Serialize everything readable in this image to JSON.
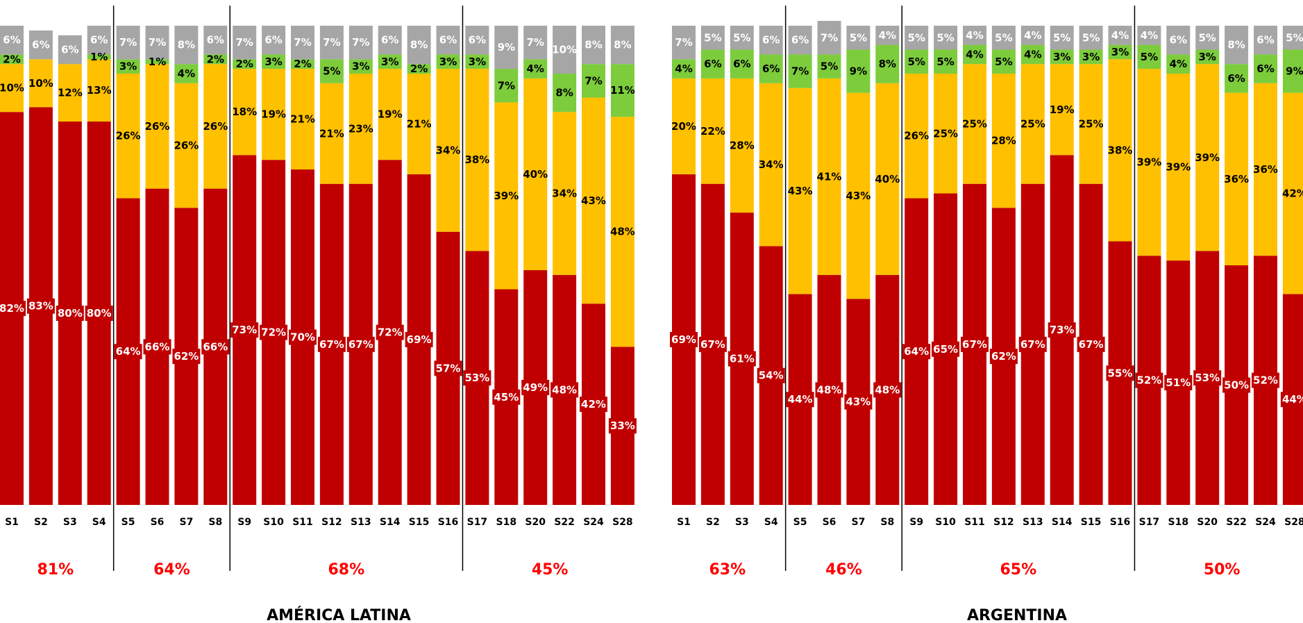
{
  "colors": {
    "red": "#c00000",
    "yellow": "#ffc000",
    "green": "#7ccc3c",
    "gray": "#a6a6a6",
    "avg_text": "#ff0000",
    "divider": "#000000"
  },
  "chart_data": [
    {
      "type": "bar",
      "stacked": true,
      "title": "AMÉRICA LATINA",
      "categories": [
        "S1",
        "S2",
        "S3",
        "S4",
        "S5",
        "S6",
        "S7",
        "S8",
        "S9",
        "S10",
        "S11",
        "S12",
        "S13",
        "S14",
        "S15",
        "S16",
        "S17",
        "S18",
        "S20",
        "S22",
        "S24",
        "S28"
      ],
      "series": [
        {
          "color_key": "red",
          "values": [
            82,
            83,
            80,
            80,
            64,
            66,
            62,
            66,
            73,
            72,
            70,
            67,
            67,
            72,
            69,
            57,
            53,
            45,
            49,
            48,
            42,
            33
          ]
        },
        {
          "color_key": "yellow",
          "values": [
            10,
            10,
            12,
            13,
            26,
            26,
            26,
            26,
            18,
            19,
            21,
            21,
            23,
            19,
            21,
            34,
            38,
            39,
            40,
            34,
            43,
            48
          ]
        },
        {
          "color_key": "green",
          "values": [
            2,
            null,
            null,
            1,
            3,
            1,
            4,
            2,
            2,
            3,
            2,
            5,
            3,
            3,
            2,
            3,
            3,
            7,
            4,
            8,
            7,
            11
          ]
        },
        {
          "color_key": "gray",
          "values": [
            6,
            6,
            6,
            6,
            7,
            7,
            8,
            6,
            7,
            6,
            7,
            7,
            7,
            6,
            8,
            6,
            6,
            9,
            7,
            10,
            8,
            8
          ]
        }
      ],
      "groups": [
        {
          "start": 0,
          "end": 3,
          "average": "81%"
        },
        {
          "start": 4,
          "end": 7,
          "average": "64%"
        },
        {
          "start": 8,
          "end": 15,
          "average": "68%"
        },
        {
          "start": 16,
          "end": 21,
          "average": "45%"
        }
      ],
      "ylim": [
        0,
        100
      ]
    },
    {
      "type": "bar",
      "stacked": true,
      "title": "ARGENTINA",
      "categories": [
        "S1",
        "S2",
        "S3",
        "S4",
        "S5",
        "S6",
        "S7",
        "S8",
        "S9",
        "S10",
        "S11",
        "S12",
        "S13",
        "S14",
        "S15",
        "S16",
        "S17",
        "S18",
        "S20",
        "S22",
        "S24",
        "S28"
      ],
      "series": [
        {
          "color_key": "red",
          "values": [
            69,
            67,
            61,
            54,
            44,
            48,
            43,
            48,
            64,
            65,
            67,
            62,
            67,
            73,
            67,
            55,
            52,
            51,
            53,
            50,
            52,
            44
          ]
        },
        {
          "color_key": "yellow",
          "values": [
            20,
            22,
            28,
            34,
            43,
            41,
            43,
            40,
            26,
            25,
            25,
            28,
            25,
            19,
            25,
            38,
            39,
            39,
            39,
            36,
            36,
            42
          ]
        },
        {
          "color_key": "green",
          "values": [
            4,
            6,
            6,
            6,
            7,
            5,
            9,
            8,
            5,
            5,
            4,
            5,
            4,
            3,
            3,
            3,
            5,
            4,
            3,
            6,
            6,
            9
          ]
        },
        {
          "color_key": "gray",
          "values": [
            7,
            5,
            5,
            6,
            6,
            7,
            5,
            4,
            5,
            5,
            4,
            5,
            4,
            5,
            5,
            4,
            4,
            6,
            5,
            8,
            6,
            5
          ]
        }
      ],
      "groups": [
        {
          "start": 0,
          "end": 3,
          "average": "63%"
        },
        {
          "start": 4,
          "end": 7,
          "average": "46%"
        },
        {
          "start": 8,
          "end": 15,
          "average": "65%"
        },
        {
          "start": 16,
          "end": 21,
          "average": "50%"
        }
      ],
      "ylim": [
        0,
        100
      ]
    }
  ]
}
